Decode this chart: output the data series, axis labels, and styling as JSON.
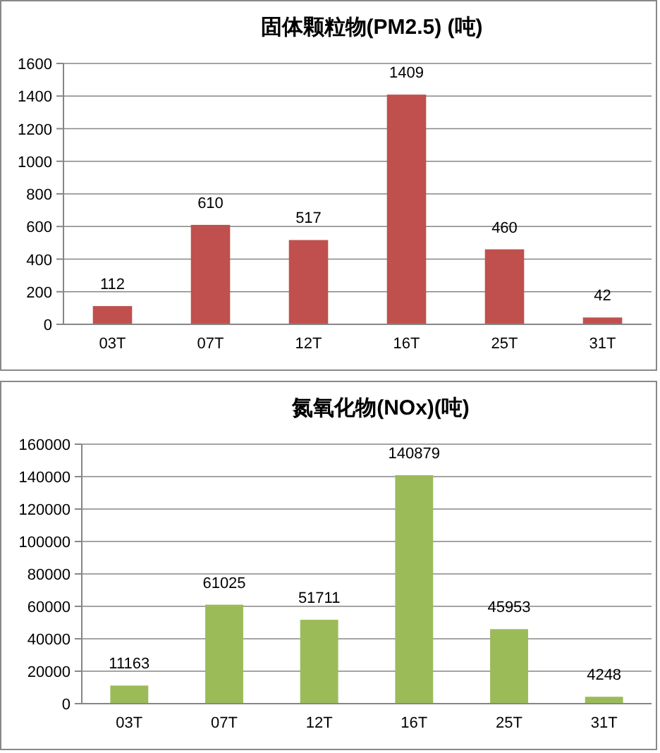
{
  "chart_data": [
    {
      "type": "bar",
      "title": "固体颗粒物(PM2.5) (吨)",
      "categories": [
        "03T",
        "07T",
        "12T",
        "16T",
        "25T",
        "31T"
      ],
      "values": [
        112,
        610,
        517,
        1409,
        460,
        42
      ],
      "color": "#c0504d",
      "ylim": [
        0,
        1600
      ],
      "yticks": [
        0,
        200,
        400,
        600,
        800,
        1000,
        1200,
        1400,
        1600
      ],
      "grid": "y",
      "data_labels": true
    },
    {
      "type": "bar",
      "title": "氮氧化物(NOx)(吨)",
      "categories": [
        "03T",
        "07T",
        "12T",
        "16T",
        "25T",
        "31T"
      ],
      "values": [
        11163,
        61025,
        51711,
        140879,
        45953,
        4248
      ],
      "color": "#9bbb59",
      "ylim": [
        0,
        160000
      ],
      "yticks": [
        0,
        20000,
        40000,
        60000,
        80000,
        100000,
        120000,
        140000,
        160000
      ],
      "grid": "y",
      "data_labels": true
    }
  ]
}
